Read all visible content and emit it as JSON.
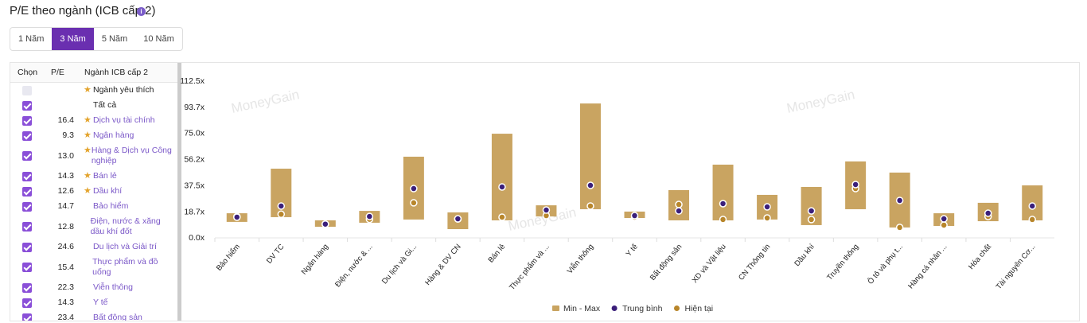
{
  "header": {
    "title": "P/E theo ngành (ICB cấp 2)"
  },
  "tabs": {
    "items": [
      "1 Năm",
      "3 Năm",
      "5 Năm",
      "10 Năm"
    ],
    "active": 1
  },
  "table": {
    "columns": [
      "Chọn",
      "P/E",
      "Ngành ICB cấp 2"
    ],
    "rows": [
      {
        "checked": false,
        "favorite": true,
        "name": "Ngành yêu thích"
      },
      {
        "checked": true,
        "favorite": false,
        "name": "Tất cả"
      },
      {
        "checked": true,
        "favorite": true,
        "pe": "16.4",
        "name": "Dịch vụ tài chính"
      },
      {
        "checked": true,
        "favorite": true,
        "pe": "9.3",
        "name": "Ngân hàng"
      },
      {
        "checked": true,
        "favorite": true,
        "pe": "13.0",
        "name": "Hàng & Dịch vụ Công nghiệp"
      },
      {
        "checked": true,
        "favorite": true,
        "pe": "14.3",
        "name": "Bán lẻ"
      },
      {
        "checked": true,
        "favorite": true,
        "pe": "12.6",
        "name": "Dầu khí"
      },
      {
        "checked": true,
        "favorite": false,
        "pe": "14.7",
        "name": "Bảo hiểm"
      },
      {
        "checked": true,
        "favorite": false,
        "pe": "12.8",
        "name": "Điện, nước & xăng dầu khí đốt"
      },
      {
        "checked": true,
        "favorite": false,
        "pe": "24.6",
        "name": "Du lịch và Giải trí"
      },
      {
        "checked": true,
        "favorite": false,
        "pe": "15.4",
        "name": "Thực phẩm và đồ uống"
      },
      {
        "checked": true,
        "favorite": false,
        "pe": "22.3",
        "name": "Viễn thông"
      },
      {
        "checked": true,
        "favorite": false,
        "pe": "14.3",
        "name": "Y tế"
      },
      {
        "checked": true,
        "favorite": false,
        "pe": "23.4",
        "name": "Bất động sản"
      }
    ]
  },
  "chart_data": {
    "type": "range",
    "watermark": "MoneyGain",
    "categories": [
      "Bảo hiểm",
      "DV TC",
      "Ngân hàng",
      "Điện, nước & ...",
      "Du lịch và Gi...",
      "Hàng & DV CN",
      "Bán lẻ",
      "Thực phẩm và ...",
      "Viễn thông",
      "Y tế",
      "Bất động sản",
      "XD và Vật liệu",
      "CN Thông tin",
      "Dầu khí",
      "Truyền thông",
      "Ô tô và phụ t...",
      "Hàng cá nhân ...",
      "Hóa chất",
      "Tài nguyên Cơ..."
    ],
    "series": [
      {
        "name": "Min - Max",
        "color": "#c9a461",
        "min": [
          10.9,
          14.3,
          7.4,
          10.3,
          12.6,
          5.7,
          12.0,
          14.8,
          20.0,
          13.7,
          12.0,
          12.0,
          12.6,
          8.6,
          20.0,
          6.9,
          8.0,
          11.4,
          12.0
        ],
        "max": [
          17.1,
          49.1,
          12.0,
          18.8,
          57.7,
          17.7,
          74.2,
          22.8,
          95.9,
          18.3,
          33.7,
          52.0,
          30.3,
          36.0,
          54.3,
          46.3,
          17.1,
          24.6,
          37.1
        ]
      },
      {
        "name": "Trung bình",
        "color": "#3b1f7a",
        "values": [
          14.3,
          22.3,
          9.3,
          14.8,
          34.8,
          13.1,
          36.0,
          19.4,
          37.1,
          15.4,
          18.8,
          24.0,
          21.7,
          18.8,
          37.7,
          26.3,
          13.1,
          17.1,
          22.3
        ]
      },
      {
        "name": "Hiện tại",
        "color": "#b8862b",
        "values": [
          14.7,
          16.4,
          9.3,
          12.8,
          24.6,
          13.0,
          14.3,
          15.4,
          22.3,
          14.3,
          23.4,
          12.6,
          13.7,
          12.6,
          34.8,
          6.9,
          8.6,
          14.8,
          12.6
        ]
      }
    ],
    "ylim": [
      0,
      112.5
    ],
    "yticks": [
      {
        "value": 0,
        "label": "0.0x"
      },
      {
        "value": 18.7,
        "label": "18.7x"
      },
      {
        "value": 37.5,
        "label": "37.5x"
      },
      {
        "value": 56.2,
        "label": "56.2x"
      },
      {
        "value": 75,
        "label": "75.0x"
      },
      {
        "value": 93.7,
        "label": "93.7x"
      },
      {
        "value": 112.5,
        "label": "112.5x"
      }
    ]
  }
}
